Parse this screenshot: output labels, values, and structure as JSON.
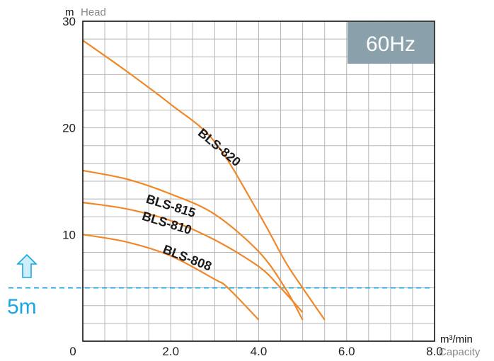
{
  "chart_data": {
    "type": "line",
    "badge": "60Hz",
    "y_unit": "m",
    "ylabel": "Head",
    "x_unit": "m³/min",
    "xlabel": "Capacity",
    "xlim": [
      0,
      8
    ],
    "ylim": [
      0,
      30
    ],
    "x_ticks": [
      "0",
      "2.0",
      "4.0",
      "6.0",
      "8.0"
    ],
    "y_ticks": [
      "10",
      "20",
      "30"
    ],
    "grid": true,
    "series_color": "#f0882a",
    "series": [
      {
        "name": "BLS-820",
        "points": [
          [
            0,
            28.2
          ],
          [
            1,
            25.3
          ],
          [
            2,
            22.2
          ],
          [
            3,
            18.7
          ],
          [
            4,
            12.0
          ],
          [
            4.6,
            7.5
          ],
          [
            5.0,
            5.0
          ],
          [
            5.5,
            2.0
          ]
        ]
      },
      {
        "name": "BLS-815",
        "points": [
          [
            0,
            16.0
          ],
          [
            1,
            15.2
          ],
          [
            2,
            13.8
          ],
          [
            3,
            11.9
          ],
          [
            4,
            8.4
          ],
          [
            4.6,
            5.0
          ],
          [
            5.0,
            2.0
          ]
        ]
      },
      {
        "name": "BLS-810",
        "points": [
          [
            0,
            13.0
          ],
          [
            1,
            12.4
          ],
          [
            2,
            11.3
          ],
          [
            3,
            9.5
          ],
          [
            4,
            7.0
          ],
          [
            4.5,
            5.0
          ],
          [
            5.0,
            2.7
          ]
        ]
      },
      {
        "name": "BLS-808",
        "points": [
          [
            0,
            10.0
          ],
          [
            1,
            9.3
          ],
          [
            2,
            8.0
          ],
          [
            3,
            5.8
          ],
          [
            3.3,
            5.0
          ],
          [
            4.0,
            2.0
          ]
        ]
      }
    ],
    "reference_line": {
      "y": 5,
      "label": "5m",
      "color": "#1aa7e0"
    },
    "badge_color": "#8aa0ab"
  }
}
